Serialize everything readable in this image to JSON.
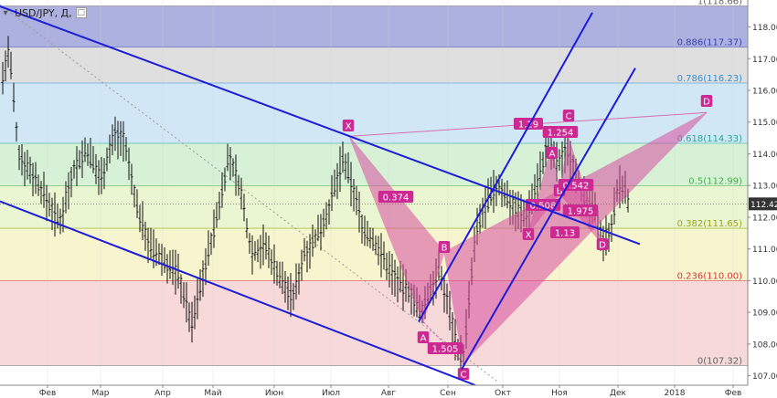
{
  "instrument": {
    "title": "USD/JPY, Д,"
  },
  "price_axis": {
    "min": 106.7,
    "max": 118.85,
    "ticks": [
      "118.00",
      "117.00",
      "116.00",
      "115.00",
      "114.00",
      "113.00",
      "112.00",
      "111.00",
      "110.00",
      "109.00",
      "108.00",
      "107.00"
    ],
    "tick_values": [
      118,
      117,
      116,
      115,
      114,
      113,
      112,
      111,
      110,
      109,
      108,
      107
    ],
    "current_price": "112.42",
    "current_value": 112.42
  },
  "time_axis": {
    "labels": [
      "Фев",
      "Мар",
      "Апр",
      "Май",
      "Июн",
      "Июл",
      "Авг",
      "Сен",
      "Окт",
      "Ноя",
      "Дек",
      "2018",
      "Фев"
    ]
  },
  "fib_levels": [
    {
      "label": "1(118.66)",
      "value": 118.66,
      "color": "#666666",
      "band": "#9fa3d9"
    },
    {
      "label": "0.886(117.37)",
      "value": 117.37,
      "color": "#3b3fb0",
      "band": "#d9d9d9"
    },
    {
      "label": "0.786(116.23)",
      "value": 116.23,
      "color": "#3a8fd1",
      "band": "#c9e3f5"
    },
    {
      "label": "0.618(114.33)",
      "value": 114.33,
      "color": "#2aa89a",
      "band": "#cfeecf"
    },
    {
      "label": "0.5(112.99)",
      "value": 112.99,
      "color": "#4caf50",
      "band": "#e6f5c9"
    },
    {
      "label": "0.382(111.65)",
      "value": 111.65,
      "color": "#9aa61b",
      "band": "#f6f3c6"
    },
    {
      "label": "0.236(110.00)",
      "value": 110.0,
      "color": "#d23b3b",
      "band": "#f6d2d2"
    },
    {
      "label": "0(107.32)",
      "value": 107.32,
      "color": "#666666",
      "band": null
    }
  ],
  "pattern_points": [
    "X",
    "A",
    "B",
    "C",
    "D"
  ],
  "pattern_ratios": [
    "0.374",
    "1.505"
  ],
  "small_pattern_points": [
    "X",
    "A",
    "B",
    "C",
    "D"
  ],
  "small_pattern_ratios": [
    "1.29",
    "1.254",
    "0.508",
    "0.542",
    "1.975",
    "1.13"
  ],
  "colors": {
    "channel": "#1c1cd9",
    "pattern_fill": "#d94fa0",
    "pattern_label_bg": "#cc2a92",
    "candles": "#000000",
    "price_badge": "#333333"
  }
}
